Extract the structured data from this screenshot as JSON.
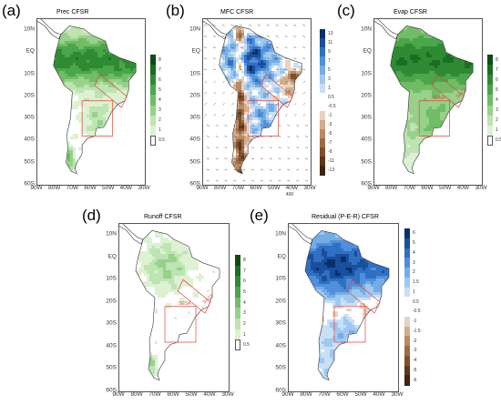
{
  "figure": {
    "latitudes": [
      "10N",
      "EQ",
      "10S",
      "20S",
      "30S",
      "40S",
      "50S",
      "60S"
    ],
    "longitudes": [
      "90W",
      "80W",
      "70W",
      "60W",
      "50W",
      "40W",
      "30W"
    ],
    "region_labels": [
      "SESA",
      "SACZ"
    ]
  },
  "panels": [
    {
      "label": "(a)",
      "title": "Prec CFSR",
      "colorbar_ticks": [
        "8",
        "7",
        "6",
        "5",
        "4",
        "3",
        "2",
        "1",
        "0.5"
      ],
      "colors": [
        "#0b4d14",
        "#1a6e22",
        "#2e8b34",
        "#4aa64a",
        "#70bd66",
        "#97d18b",
        "#bde4b1",
        "#dcf2d3",
        "#ffffff"
      ]
    },
    {
      "label": "(b)",
      "title": "MFC CFSR",
      "colorbar_ticks": [
        "13",
        "11",
        "9",
        "7",
        "5",
        "3",
        "1",
        "0.5",
        "-0.5",
        "-1",
        "-3",
        "-5",
        "-7",
        "-9",
        "-11",
        "-13"
      ],
      "colors": [
        "#08306b",
        "#1a4f9c",
        "#2f6fc4",
        "#4f8fdc",
        "#74ade6",
        "#9ec8ef",
        "#c8e0f6",
        "#ffffff",
        "#ffffff",
        "#e8d2c0",
        "#d1ad8e",
        "#b98a63",
        "#9f6a42",
        "#7f4e2c",
        "#5e361c",
        "#3f230f"
      ],
      "vector_label": "400"
    },
    {
      "label": "(c)",
      "title": "Evap CFSR",
      "colorbar_ticks": [
        "8",
        "7",
        "6",
        "5",
        "4",
        "3",
        "2",
        "1",
        "0.5"
      ],
      "colors": [
        "#0b4d14",
        "#1a6e22",
        "#2e8b34",
        "#4aa64a",
        "#70bd66",
        "#97d18b",
        "#bde4b1",
        "#dcf2d3",
        "#ffffff"
      ]
    },
    {
      "label": "(d)",
      "title": "Runoff CFSR",
      "colorbar_ticks": [
        "8",
        "7",
        "6",
        "5",
        "4",
        "3",
        "2",
        "1",
        "0.5"
      ],
      "colors": [
        "#0b4d14",
        "#1a6e22",
        "#2e8b34",
        "#4aa64a",
        "#70bd66",
        "#97d18b",
        "#bde4b1",
        "#dcf2d3",
        "#ffffff"
      ]
    },
    {
      "label": "(e)",
      "title": "Residual (P-E-R) CFSR",
      "colorbar_ticks": [
        "6",
        "5",
        "4",
        "3",
        "2",
        "1.5",
        "1",
        "0.5",
        "-0.5",
        "-1",
        "-1.5",
        "-2",
        "-3",
        "-4",
        "-5",
        "-6"
      ],
      "colors": [
        "#08306b",
        "#1a4f9c",
        "#2f6fc4",
        "#4f8fdc",
        "#74ade6",
        "#9ec8ef",
        "#c8e0f6",
        "#ffffff",
        "#ffffff",
        "#e8d2c0",
        "#d1ad8e",
        "#b98a63",
        "#9f6a42",
        "#7f4e2c",
        "#5e361c",
        "#3f230f"
      ]
    }
  ]
}
